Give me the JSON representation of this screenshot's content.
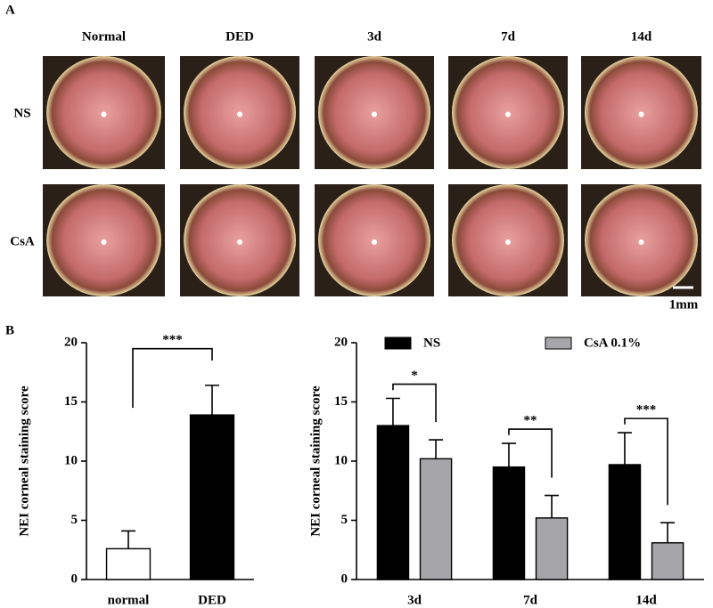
{
  "panels": {
    "a": "A",
    "b": "B"
  },
  "photo_grid": {
    "columns": [
      "Normal",
      "DED",
      "3d",
      "7d",
      "14d"
    ],
    "rows": [
      "NS",
      "CsA"
    ],
    "scale_bar": "1mm"
  },
  "chart_data": [
    {
      "type": "bar",
      "y_label": "NEI corneal staining score",
      "categories": [
        "normal",
        "DED"
      ],
      "values": [
        2.6,
        13.9
      ],
      "errors": [
        1.5,
        2.5
      ],
      "colors": [
        "#ffffff",
        "#000000"
      ],
      "annotations": [
        "***"
      ],
      "ylim": [
        0,
        20
      ],
      "yticks": [
        0,
        5,
        10,
        15,
        20
      ]
    },
    {
      "type": "bar",
      "y_label": "NEI corneal staining score",
      "categories": [
        "3d",
        "7d",
        "14d"
      ],
      "series": [
        {
          "name": "NS",
          "color": "#000000",
          "values": [
            13.0,
            9.5,
            9.7
          ],
          "errors": [
            2.3,
            2.0,
            2.7
          ]
        },
        {
          "name": "CsA 0.1%",
          "color": "#a6a6aa",
          "values": [
            10.2,
            5.2,
            3.1
          ],
          "errors": [
            1.6,
            1.9,
            1.7
          ]
        }
      ],
      "annotations": [
        "*",
        "**",
        "***"
      ],
      "ylim": [
        0,
        20
      ],
      "yticks": [
        0,
        5,
        10,
        15,
        20
      ]
    }
  ]
}
